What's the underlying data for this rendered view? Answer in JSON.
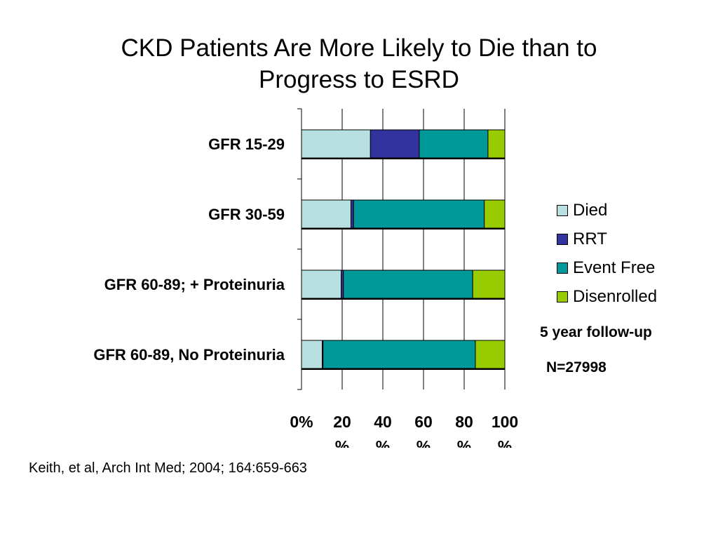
{
  "slide": {
    "title_line1": "CKD Patients Are More Likely to Die than to",
    "title_line2": "Progress to ESRD",
    "note_followup": "5 year follow-up",
    "note_n": "N=27998",
    "citation": "Keith, et al, Arch Int Med; 2004; 164:659-663"
  },
  "chart_data": {
    "type": "bar",
    "orientation": "horizontal",
    "stacked": "100%",
    "categories": [
      "GFR 15-29",
      "GFR 30-59",
      "GFR 60-89; + Proteinuria",
      "GFR 60-89, No Proteinuria"
    ],
    "series": [
      {
        "name": "Died",
        "color": "#b8e0e0",
        "values": [
          33.9,
          24.3,
          19.5,
          10.2
        ]
      },
      {
        "name": "RRT",
        "color": "#3333a0",
        "values": [
          24.0,
          1.3,
          1.1,
          0.4
        ]
      },
      {
        "name": "Event Free",
        "color": "#009999",
        "values": [
          33.8,
          64.3,
          63.6,
          74.9
        ]
      },
      {
        "name": "Disenrolled",
        "color": "#99cc00",
        "values": [
          8.3,
          10.1,
          15.8,
          14.5
        ]
      }
    ],
    "xlim": [
      0,
      100
    ],
    "xticks": [
      0,
      20,
      40,
      60,
      80,
      100
    ],
    "xtick_labels": [
      "0%",
      "20\n%",
      "40\n%",
      "60\n%",
      "80\n%",
      "100\n%"
    ],
    "grid": true,
    "legend_position": "right"
  }
}
